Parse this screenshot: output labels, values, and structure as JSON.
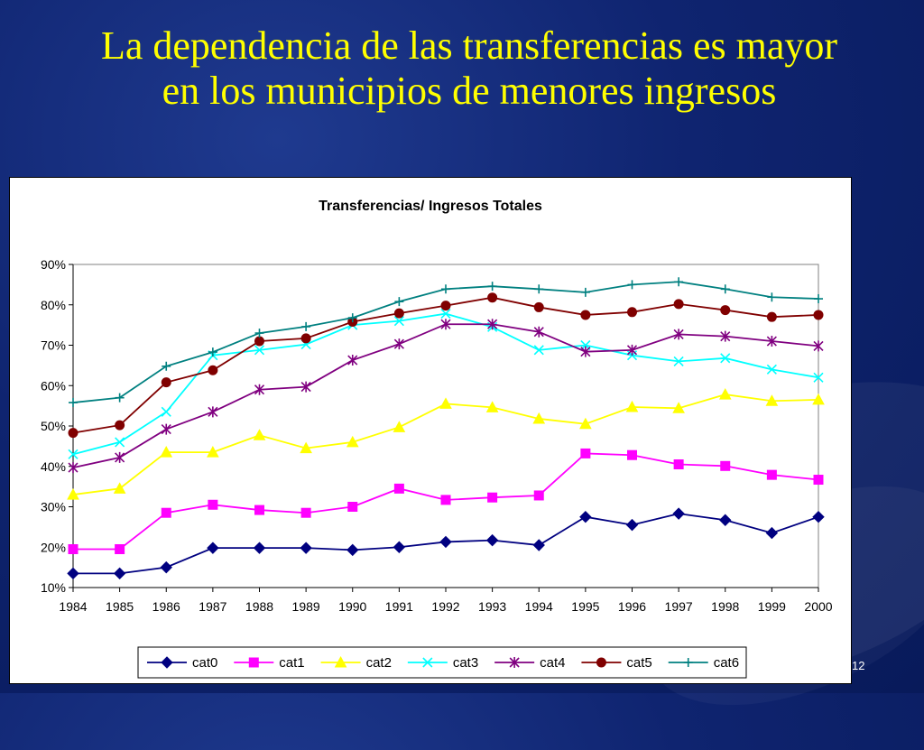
{
  "slide": {
    "title_line1": "La dependencia de las transferencias es mayor",
    "title_line2": "en los municipios de menores ingresos",
    "page_number": "12"
  },
  "chart_data": {
    "type": "line",
    "title": "Transferencias/ Ingresos Totales",
    "xlabel": "",
    "ylabel": "",
    "x": [
      "1984",
      "1985",
      "1986",
      "1987",
      "1988",
      "1989",
      "1990",
      "1991",
      "1992",
      "1993",
      "1994",
      "1995",
      "1996",
      "1997",
      "1998",
      "1999",
      "2000"
    ],
    "ylim": [
      10,
      90
    ],
    "yticks": [
      "10%",
      "20%",
      "30%",
      "40%",
      "50%",
      "60%",
      "70%",
      "80%",
      "90%"
    ],
    "grid": false,
    "legend_position": "bottom",
    "series": [
      {
        "name": "cat0",
        "color": "#000080",
        "marker": "diamond",
        "values": [
          13.5,
          13.5,
          15,
          19.8,
          19.8,
          19.8,
          19.3,
          20,
          21.3,
          21.7,
          20.5,
          27.5,
          25.5,
          28.3,
          26.7,
          23.5,
          27.5
        ]
      },
      {
        "name": "cat1",
        "color": "#ff00ff",
        "marker": "square",
        "values": [
          19.5,
          19.5,
          28.5,
          30.5,
          29.2,
          28.5,
          30,
          34.5,
          31.7,
          32.3,
          32.8,
          43.2,
          42.8,
          40.5,
          40.1,
          37.9,
          36.7
        ]
      },
      {
        "name": "cat2",
        "color": "#ffff00",
        "marker": "triangle",
        "values": [
          33,
          34.5,
          43.5,
          43.5,
          47.7,
          44.5,
          46,
          49.7,
          55.5,
          54.6,
          51.8,
          50.5,
          54.7,
          54.4,
          57.8,
          56.2,
          56.5
        ]
      },
      {
        "name": "cat3",
        "color": "#00ffff",
        "marker": "x",
        "values": [
          43,
          46,
          53.5,
          67.5,
          68.8,
          70.2,
          75,
          76,
          77.8,
          74.5,
          68.8,
          70,
          67.5,
          66,
          66.8,
          64,
          62
        ]
      },
      {
        "name": "cat4",
        "color": "#800080",
        "marker": "star",
        "values": [
          39.7,
          42.2,
          49.2,
          53.5,
          59,
          59.7,
          66.3,
          70.3,
          75.2,
          75.2,
          73.3,
          68.4,
          68.8,
          72.7,
          72.2,
          71,
          69.8
        ]
      },
      {
        "name": "cat5",
        "color": "#800000",
        "marker": "circle",
        "values": [
          48.3,
          50.2,
          60.8,
          63.8,
          71,
          71.7,
          75.8,
          77.9,
          79.8,
          81.8,
          79.4,
          77.5,
          78.2,
          80.2,
          78.7,
          77,
          77.5
        ]
      },
      {
        "name": "cat6",
        "color": "#008080",
        "marker": "plus",
        "values": [
          55.8,
          57,
          64.8,
          68.3,
          73,
          74.6,
          76.8,
          80.8,
          83.9,
          84.6,
          83.9,
          83.1,
          85,
          85.7,
          83.9,
          81.9,
          81.5
        ]
      }
    ]
  }
}
